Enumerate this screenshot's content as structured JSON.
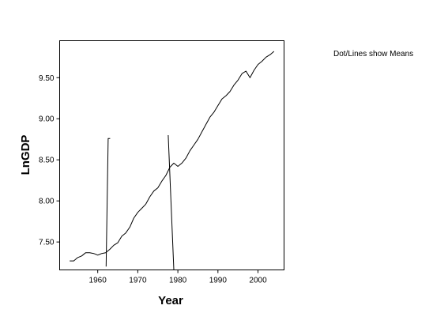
{
  "chart_data": {
    "type": "line",
    "xlabel": "Year",
    "ylabel": "LnGDP",
    "annotation": "Dot/Lines show Means",
    "xlim": [
      1950.5,
      2006.5
    ],
    "ylim": [
      7.16,
      9.95
    ],
    "x_ticks": [
      1960,
      1970,
      1980,
      1990,
      2000
    ],
    "x_tick_labels": [
      "1960",
      "1970",
      "1980",
      "1990",
      "2000"
    ],
    "y_ticks": [
      7.5,
      8.0,
      8.5,
      9.0,
      9.5
    ],
    "y_tick_labels": [
      "7.50",
      "8.00",
      "8.50",
      "9.00",
      "9.50"
    ],
    "grid": false,
    "series": [
      {
        "x": [
          1953,
          1954,
          1955,
          1956,
          1957,
          1958,
          1959,
          1960,
          1961,
          1962,
          1963,
          1964,
          1965,
          1966,
          1967,
          1968,
          1969,
          1970,
          1971,
          1972,
          1973,
          1974,
          1975,
          1976,
          1977,
          1978,
          1979,
          1980,
          1981,
          1982,
          1983,
          1984,
          1985,
          1986,
          1987,
          1988,
          1989,
          1990,
          1991,
          1992,
          1993,
          1994,
          1995,
          1996,
          1997,
          1998,
          1999,
          2000,
          2001,
          2002,
          2003,
          2004
        ],
        "y": [
          7.27,
          7.27,
          7.31,
          7.33,
          7.37,
          7.37,
          7.36,
          7.34,
          7.36,
          7.37,
          7.41,
          7.46,
          7.49,
          7.57,
          7.61,
          7.68,
          7.79,
          7.86,
          7.91,
          7.96,
          8.05,
          8.12,
          8.16,
          8.24,
          8.31,
          8.41,
          8.46,
          8.42,
          8.46,
          8.52,
          8.61,
          8.68,
          8.75,
          8.84,
          8.93,
          9.02,
          9.08,
          9.16,
          9.24,
          9.28,
          9.33,
          9.41,
          9.47,
          9.55,
          9.58,
          9.5,
          9.59,
          9.66,
          9.7,
          9.75,
          9.78,
          9.82
        ]
      },
      {
        "x": [
          1962.1,
          1962.6,
          1963.1
        ],
        "y": [
          7.2,
          8.76,
          8.76
        ]
      },
      {
        "x": [
          1977.6,
          1979.0
        ],
        "y": [
          8.8,
          7.16
        ]
      }
    ]
  }
}
